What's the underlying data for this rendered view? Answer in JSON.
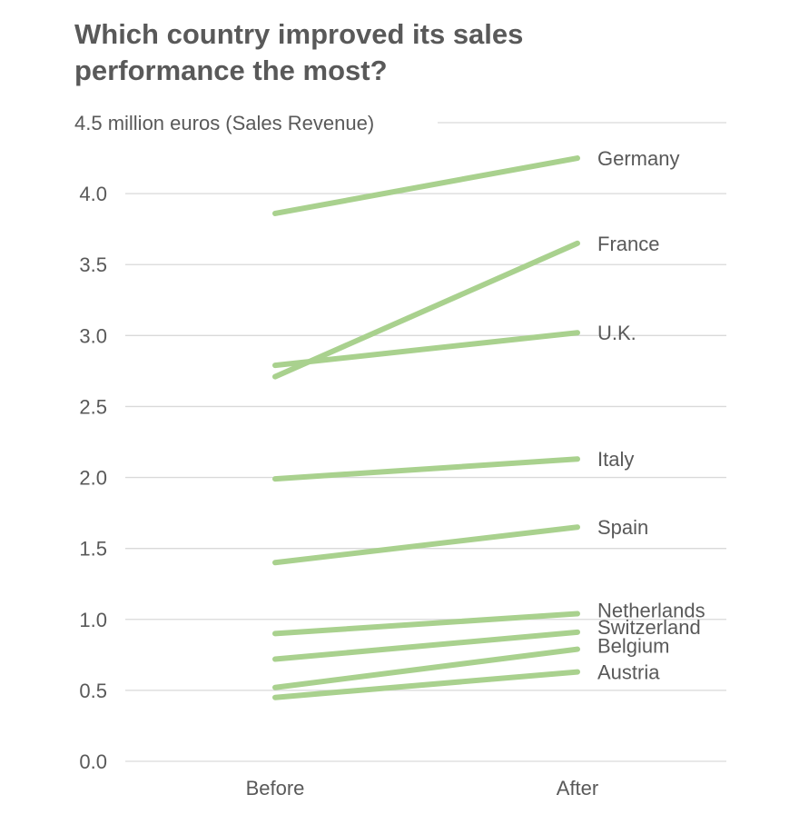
{
  "chart_data": {
    "type": "line",
    "title": "Which country improved its sales performance the most?",
    "categories": [
      "Before",
      "After"
    ],
    "y_top_label": "4.5 million euros (Sales Revenue)",
    "y_ticks": [
      "0.0",
      "0.5",
      "1.0",
      "1.5",
      "2.0",
      "2.5",
      "3.0",
      "3.5",
      "4.0"
    ],
    "ylim": [
      0,
      4.5
    ],
    "grid": true,
    "legend": "none (series labelled at line ends)",
    "line_color": "#a9d18e",
    "series": [
      {
        "name": "Germany",
        "values": [
          3.86,
          4.25
        ]
      },
      {
        "name": "France",
        "values": [
          2.71,
          3.65
        ]
      },
      {
        "name": "U.K.",
        "values": [
          2.79,
          3.02
        ]
      },
      {
        "name": "Italy",
        "values": [
          1.99,
          2.13
        ]
      },
      {
        "name": "Spain",
        "values": [
          1.4,
          1.65
        ]
      },
      {
        "name": "Netherlands",
        "values": [
          0.9,
          1.04
        ]
      },
      {
        "name": "Switzerland",
        "values": [
          0.72,
          0.91
        ]
      },
      {
        "name": "Belgium",
        "values": [
          0.52,
          0.79
        ]
      },
      {
        "name": "Austria",
        "values": [
          0.45,
          0.63
        ]
      }
    ]
  }
}
